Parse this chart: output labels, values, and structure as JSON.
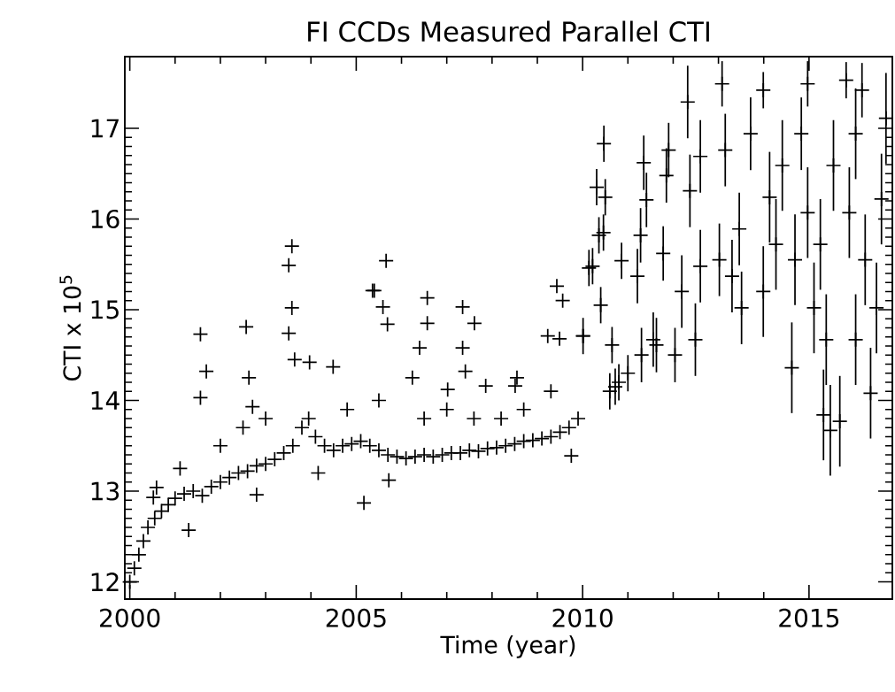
{
  "chart_data": {
    "type": "scatter",
    "title": "FI CCDs Measured Parallel CTI",
    "xlabel": "Time (year)",
    "ylabel": "CTI x 10$^{5}$",
    "marker": "cross",
    "xlim": [
      1999.89,
      2016.84
    ],
    "ylim": [
      11.81,
      17.79
    ],
    "xticks": [
      2000,
      2005,
      2010,
      2015
    ],
    "yticks": [
      12,
      13,
      14,
      15,
      16,
      17
    ],
    "series": [
      {
        "color": "#000000",
        "x": [
          2000.0,
          2000.1,
          2000.2,
          2000.3,
          2000.4,
          2000.55,
          2000.7,
          2000.85,
          2001.0,
          2001.2,
          2001.4,
          2001.6,
          2001.8,
          2002.0,
          2002.2,
          2002.4,
          2002.6,
          2002.8,
          2003.0,
          2003.2,
          2003.4,
          2003.6,
          2003.8,
          2003.95,
          2004.1,
          2004.3,
          2004.5,
          2004.7,
          2004.9,
          2005.1,
          2005.3,
          2005.5,
          2005.7,
          2005.9,
          2006.1,
          2006.3,
          2006.5,
          2006.7,
          2006.9,
          2007.1,
          2007.3,
          2007.5,
          2007.7,
          2007.9,
          2008.1,
          2008.3,
          2008.5,
          2008.7,
          2008.9,
          2009.1,
          2009.3,
          2009.5,
          2009.7,
          2009.9,
          2002.0,
          2002.5,
          2003.0,
          2004.8,
          2005.5,
          2006.5,
          2007.0,
          2007.6,
          2008.2,
          2008.7,
          2009.3,
          2003.58,
          2003.51,
          2003.58,
          2001.56,
          2002.57,
          2005.4,
          2005.17,
          2001.3,
          2002.8,
          2004.16,
          2001.69,
          2001.56,
          2002.63,
          2003.51,
          2003.64,
          2003.97,
          2004.49,
          2000.59,
          2000.52,
          2001.11,
          2002.71,
          2005.66,
          2005.36,
          2005.59,
          2005.69,
          2006.57,
          2006.57,
          2006.4,
          2007.35,
          2007.61,
          2007.35,
          2007.41,
          2005.72,
          2008.55,
          2009.43,
          2009.56,
          2009.23,
          2009.49,
          2009.75,
          2010.01,
          2010.46,
          2010.14,
          2010.4,
          2006.24,
          2007.02,
          2007.86,
          2008.51,
          2010.22,
          2010.5,
          2010.47,
          2010.31,
          2010.36,
          2010.01,
          2010.65,
          2010.86,
          2010.72,
          2011.35,
          2011.41,
          2011.28,
          2011.56,
          2011.21,
          2011.9,
          2011.85,
          2011.78,
          2011.63,
          2012.04,
          2012.32,
          2012.37,
          2012.19,
          2012.49,
          2012.6,
          2012.6,
          2013.02,
          2013.08,
          2013.15,
          2013.3,
          2013.46,
          2013.51,
          2013.71,
          2013.99,
          2013.99,
          2014.13,
          2014.27,
          2014.41,
          2014.62,
          2014.69,
          2014.83,
          2014.97,
          2014.97,
          2015.11,
          2015.25,
          2015.38,
          2015.32,
          2015.47,
          2015.68,
          2015.54,
          2015.82,
          2015.89,
          2016.03,
          2016.03,
          2016.17,
          2016.24,
          2016.36,
          2016.49,
          2016.6,
          2016.7,
          2010.6,
          2010.8,
          2011.0,
          2011.3
        ],
        "values": [
          12.0,
          12.15,
          12.3,
          12.45,
          12.6,
          12.7,
          12.78,
          12.85,
          12.92,
          12.97,
          13.0,
          12.95,
          13.05,
          13.1,
          13.15,
          13.2,
          13.22,
          13.28,
          13.3,
          13.35,
          13.42,
          13.5,
          13.7,
          13.8,
          13.6,
          13.5,
          13.45,
          13.5,
          13.52,
          13.55,
          13.5,
          13.45,
          13.4,
          13.38,
          13.36,
          13.38,
          13.4,
          13.38,
          13.4,
          13.42,
          13.42,
          13.45,
          13.44,
          13.47,
          13.48,
          13.5,
          13.52,
          13.55,
          13.56,
          13.58,
          13.6,
          13.65,
          13.7,
          13.8,
          13.5,
          13.7,
          13.8,
          13.9,
          14.0,
          13.8,
          13.9,
          13.8,
          13.8,
          13.9,
          14.1,
          15.7,
          15.49,
          15.02,
          14.73,
          14.81,
          15.21,
          12.87,
          12.57,
          12.96,
          13.2,
          14.32,
          14.03,
          14.25,
          14.74,
          14.45,
          14.42,
          14.37,
          13.04,
          12.93,
          13.25,
          13.93,
          15.54,
          15.21,
          15.03,
          14.84,
          15.13,
          14.85,
          14.58,
          15.03,
          14.85,
          14.58,
          14.32,
          13.12,
          14.25,
          15.26,
          15.1,
          14.71,
          14.68,
          13.39,
          14.71,
          15.85,
          15.46,
          15.05,
          14.25,
          14.12,
          14.16,
          14.16,
          15.48,
          16.24,
          16.83,
          16.35,
          15.82,
          14.71,
          14.61,
          15.54,
          14.15,
          16.62,
          16.21,
          15.82,
          14.67,
          15.37,
          16.76,
          16.48,
          15.62,
          14.61,
          14.5,
          17.29,
          16.31,
          15.2,
          14.67,
          16.69,
          15.48,
          15.55,
          17.49,
          16.76,
          15.37,
          15.89,
          15.02,
          16.94,
          17.42,
          15.2,
          16.24,
          15.72,
          16.59,
          14.36,
          15.55,
          16.94,
          17.49,
          16.07,
          15.02,
          15.72,
          14.67,
          13.84,
          13.67,
          13.77,
          16.59,
          17.53,
          16.07,
          16.94,
          14.67,
          17.42,
          15.55,
          14.08,
          15.02,
          16.22,
          17.11,
          14.1,
          14.2,
          14.3,
          14.5
        ],
        "errors": [
          null,
          null,
          null,
          null,
          null,
          null,
          null,
          null,
          null,
          null,
          null,
          null,
          null,
          null,
          null,
          null,
          null,
          null,
          null,
          null,
          null,
          null,
          null,
          null,
          null,
          null,
          null,
          null,
          null,
          null,
          null,
          null,
          null,
          null,
          null,
          null,
          null,
          null,
          null,
          null,
          null,
          null,
          null,
          null,
          null,
          null,
          null,
          null,
          null,
          null,
          null,
          null,
          null,
          null,
          null,
          null,
          null,
          null,
          null,
          null,
          null,
          null,
          null,
          null,
          null,
          null,
          null,
          null,
          null,
          null,
          null,
          null,
          null,
          null,
          null,
          null,
          null,
          null,
          null,
          null,
          null,
          null,
          null,
          null,
          null,
          null,
          null,
          null,
          null,
          null,
          null,
          null,
          null,
          null,
          null,
          null,
          null,
          null,
          null,
          null,
          null,
          null,
          null,
          null,
          null,
          0.2,
          0.2,
          0.2,
          null,
          null,
          null,
          null,
          0.2,
          0.2,
          0.2,
          0.2,
          0.2,
          0.2,
          0.2,
          0.2,
          0.2,
          0.3,
          0.3,
          0.3,
          0.3,
          0.3,
          0.3,
          0.3,
          0.3,
          0.3,
          0.3,
          0.4,
          0.4,
          0.4,
          0.4,
          0.4,
          0.4,
          0.4,
          0.25,
          0.4,
          0.4,
          0.4,
          0.4,
          0.4,
          0.2,
          0.5,
          0.5,
          0.5,
          0.5,
          0.5,
          0.5,
          0.4,
          0.25,
          0.5,
          0.5,
          0.5,
          0.5,
          0.5,
          0.5,
          0.5,
          0.5,
          0.2,
          0.5,
          0.5,
          0.5,
          0.3,
          0.5,
          0.5,
          0.5,
          0.5,
          0.5,
          0.2,
          0.2,
          0.2,
          0.3
        ]
      }
    ]
  }
}
